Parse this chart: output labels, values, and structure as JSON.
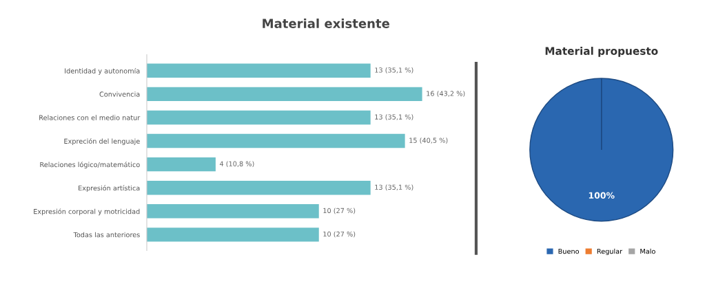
{
  "chart_data": [
    {
      "type": "bar",
      "orientation": "horizontal",
      "title": "Material existente",
      "categories": [
        "Identidad y autonomía",
        "Convivencia",
        "Relaciones con el medio natur",
        "Expreción del lenguaje",
        "Relaciones lógico/matemático",
        "Expresión artística",
        "Expresión corporal y motricidad",
        "Todas las anteriores"
      ],
      "values": [
        13,
        16,
        13,
        15,
        4,
        13,
        10,
        10
      ],
      "value_labels": [
        "13 (35,1 %)",
        "16 (43,2 %)",
        "13 (35,1 %)",
        "15 (40,5 %)",
        "4 (10,8 %)",
        "13 (35,1 %)",
        "10 (27 %)",
        "10 (27 %)"
      ],
      "color": "#6cc0c8",
      "tick_labels": "y",
      "grid": false
    },
    {
      "type": "pie",
      "title": "Material propuesto",
      "categories": [
        "Bueno",
        "Regular",
        "Malo"
      ],
      "values": [
        100,
        0,
        0
      ],
      "colors": [
        "#2a67b0",
        "#ed7d31",
        "#a5a5a5"
      ],
      "value_labels": [
        "100%",
        null,
        null
      ],
      "legend": "bottom"
    }
  ]
}
